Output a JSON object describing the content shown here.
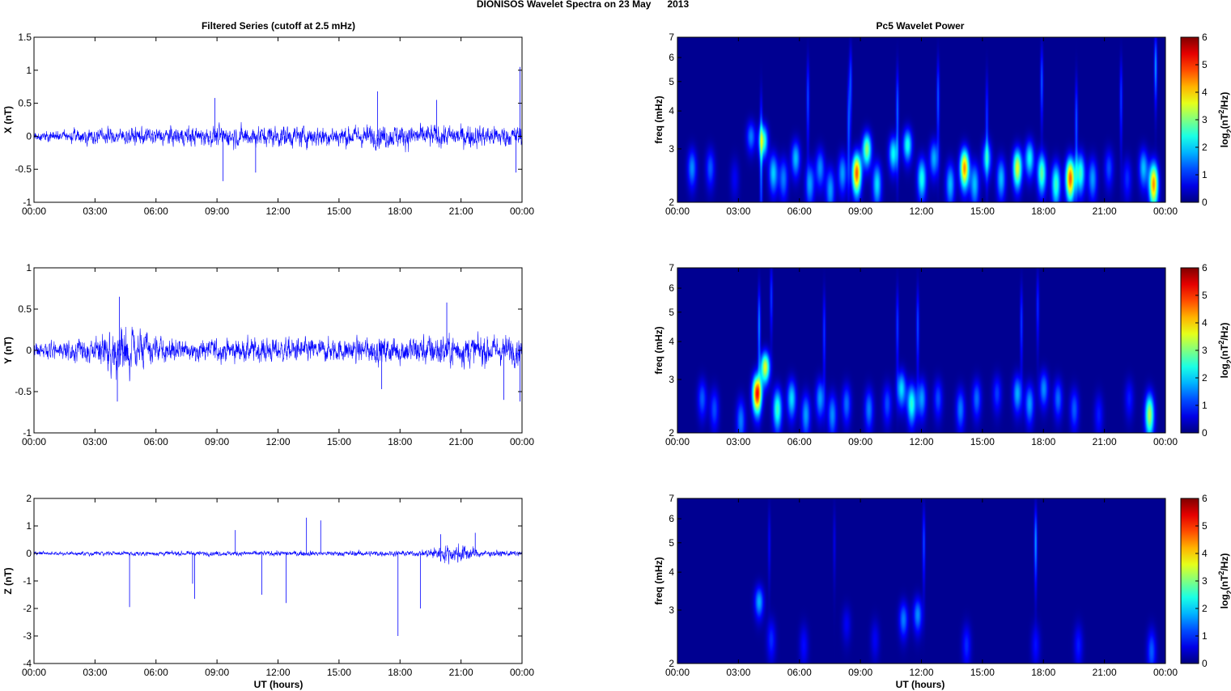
{
  "figure": {
    "title": "DIONISOS Wavelet Spectra on 23 May      2013",
    "left_column_title": "Filtered Series (cutoff at 2.5 mHz)",
    "right_column_title": "Pc5 Wavelet Power",
    "xlabel": "UT (hours)",
    "freq_label": "freq (mHz)",
    "colorbar_label": "log2(nT2/Hz)",
    "colormap": "jet",
    "time_ticks": [
      "00:00",
      "03:00",
      "06:00",
      "09:00",
      "12:00",
      "15:00",
      "18:00",
      "21:00",
      "00:00"
    ],
    "series_color": "#0000ff",
    "spectrogram_background": "#00008f"
  },
  "chart_data": [
    {
      "type": "line",
      "panel": "x-series",
      "ylabel": "X (nT)",
      "x_range_hours": [
        0,
        24
      ],
      "ylim": [
        -1,
        1.5
      ],
      "yticks": [
        "1.5",
        "1",
        "0.5",
        "0",
        "-0.5",
        "-1"
      ],
      "noise_envelope": [
        [
          0,
          0.07
        ],
        [
          3,
          0.12
        ],
        [
          6,
          0.14
        ],
        [
          9,
          0.15
        ],
        [
          12,
          0.17
        ],
        [
          15,
          0.16
        ],
        [
          18,
          0.18
        ],
        [
          21,
          0.17
        ],
        [
          24,
          0.16
        ]
      ],
      "peaks": [
        [
          8.9,
          0.58
        ],
        [
          9.3,
          -0.68
        ],
        [
          16.9,
          0.68
        ],
        [
          19.8,
          0.55
        ],
        [
          23.9,
          1.05
        ],
        [
          23.7,
          -0.55
        ],
        [
          10.9,
          -0.55
        ]
      ]
    },
    {
      "type": "line",
      "panel": "y-series",
      "ylabel": "Y (nT)",
      "x_range_hours": [
        0,
        24
      ],
      "ylim": [
        -1,
        1
      ],
      "yticks": [
        "1",
        "0.5",
        "0",
        "-0.5",
        "-1"
      ],
      "noise_envelope": [
        [
          0,
          0.1
        ],
        [
          3,
          0.15
        ],
        [
          4.2,
          0.32
        ],
        [
          6,
          0.15
        ],
        [
          9,
          0.14
        ],
        [
          12,
          0.15
        ],
        [
          15,
          0.14
        ],
        [
          18,
          0.17
        ],
        [
          20,
          0.2
        ],
        [
          24,
          0.17
        ]
      ],
      "peaks": [
        [
          4.2,
          0.65
        ],
        [
          4.1,
          -0.62
        ],
        [
          17.1,
          -0.47
        ],
        [
          23.1,
          -0.6
        ],
        [
          23.9,
          -0.62
        ],
        [
          20.3,
          0.58
        ]
      ]
    },
    {
      "type": "line",
      "panel": "z-series",
      "ylabel": "Z (nT)",
      "xlabel": "UT (hours)",
      "x_range_hours": [
        0,
        24
      ],
      "ylim": [
        -4,
        2
      ],
      "yticks": [
        "2",
        "1",
        "0",
        "-1",
        "-2",
        "-3",
        "-4"
      ],
      "noise_envelope": [
        [
          0,
          0.07
        ],
        [
          6,
          0.08
        ],
        [
          12,
          0.09
        ],
        [
          19,
          0.1
        ],
        [
          20,
          0.3
        ],
        [
          21,
          0.35
        ],
        [
          22,
          0.12
        ],
        [
          24,
          0.09
        ]
      ],
      "peaks": [
        [
          4.7,
          -1.95
        ],
        [
          7.8,
          -1.1
        ],
        [
          7.9,
          -1.65
        ],
        [
          9.9,
          0.85
        ],
        [
          11.2,
          -1.5
        ],
        [
          12.4,
          -1.8
        ],
        [
          13.4,
          1.3
        ],
        [
          14.1,
          1.2
        ],
        [
          17.9,
          -3.0
        ],
        [
          19.0,
          -2.0
        ],
        [
          20.0,
          0.7
        ],
        [
          21.7,
          0.75
        ]
      ]
    },
    {
      "type": "heatmap",
      "panel": "x-wavelet",
      "ylabel": "freq (mHz)",
      "y_scale": "log",
      "ylim": [
        2,
        7
      ],
      "yticks": [
        "7",
        "6",
        "5",
        "4",
        "3",
        "2"
      ],
      "x_range_hours": [
        0,
        24
      ],
      "clim": [
        0,
        6
      ],
      "blobs": [
        [
          0.7,
          2.6,
          1.5
        ],
        [
          1.6,
          2.6,
          1.2
        ],
        [
          2.8,
          2.4,
          0.6
        ],
        [
          3.6,
          3.3,
          1.4
        ],
        [
          4.2,
          3.2,
          2.7
        ],
        [
          4.7,
          2.5,
          1.9
        ],
        [
          5.2,
          2.4,
          1.4
        ],
        [
          5.8,
          2.8,
          1.8
        ],
        [
          6.5,
          2.3,
          1.6
        ],
        [
          7.0,
          2.6,
          1.5
        ],
        [
          7.5,
          2.2,
          1.6
        ],
        [
          8.1,
          2.5,
          1.6
        ],
        [
          8.8,
          2.5,
          4.6
        ],
        [
          9.3,
          3.0,
          3.0
        ],
        [
          9.8,
          2.3,
          2.0
        ],
        [
          10.6,
          2.9,
          2.2
        ],
        [
          11.3,
          3.1,
          2.3
        ],
        [
          12.0,
          2.4,
          2.3
        ],
        [
          12.6,
          2.8,
          1.7
        ],
        [
          13.4,
          2.3,
          1.8
        ],
        [
          14.1,
          2.6,
          4.3
        ],
        [
          14.6,
          2.3,
          1.8
        ],
        [
          15.2,
          2.8,
          1.9
        ],
        [
          15.9,
          2.4,
          1.8
        ],
        [
          16.7,
          2.6,
          3.5
        ],
        [
          17.3,
          2.8,
          2.2
        ],
        [
          17.9,
          2.5,
          2.7
        ],
        [
          18.6,
          2.3,
          2.5
        ],
        [
          19.3,
          2.4,
          4.6
        ],
        [
          19.8,
          2.5,
          2.5
        ],
        [
          20.4,
          2.4,
          1.6
        ],
        [
          21.2,
          2.6,
          1.1
        ],
        [
          22.1,
          2.4,
          0.9
        ],
        [
          22.9,
          2.6,
          1.8
        ],
        [
          23.4,
          2.3,
          4.3
        ]
      ],
      "streaks": [
        [
          4.1,
          2.9,
          1.5
        ],
        [
          6.4,
          4.4,
          1.1
        ],
        [
          8.4,
          3.6,
          1.2
        ],
        [
          8.5,
          5.0,
          1.1
        ],
        [
          10.8,
          4.0,
          1.3
        ],
        [
          12.8,
          4.4,
          1.2
        ],
        [
          15.2,
          3.7,
          1.0
        ],
        [
          17.9,
          5.0,
          1.2
        ],
        [
          19.6,
          3.6,
          1.2
        ],
        [
          21.8,
          4.4,
          1.0
        ],
        [
          23.5,
          5.6,
          1.6
        ]
      ]
    },
    {
      "type": "heatmap",
      "panel": "y-wavelet",
      "ylabel": "freq (mHz)",
      "y_scale": "log",
      "ylim": [
        2,
        7
      ],
      "yticks": [
        "7",
        "6",
        "5",
        "4",
        "3",
        "2"
      ],
      "x_range_hours": [
        0,
        24
      ],
      "clim": [
        0,
        6
      ],
      "blobs": [
        [
          1.2,
          2.6,
          1.2
        ],
        [
          1.8,
          2.4,
          1.1
        ],
        [
          3.1,
          2.2,
          1.4
        ],
        [
          3.9,
          2.7,
          5.1
        ],
        [
          4.3,
          3.3,
          3.5
        ],
        [
          4.9,
          2.4,
          2.5
        ],
        [
          5.6,
          2.6,
          2.0
        ],
        [
          6.3,
          2.3,
          1.6
        ],
        [
          7.0,
          2.6,
          1.6
        ],
        [
          7.6,
          2.3,
          1.5
        ],
        [
          8.3,
          2.5,
          1.3
        ],
        [
          9.4,
          2.4,
          1.4
        ],
        [
          10.3,
          2.5,
          1.1
        ],
        [
          11.0,
          2.8,
          2.0
        ],
        [
          11.5,
          2.5,
          2.4
        ],
        [
          12.0,
          2.6,
          1.6
        ],
        [
          12.8,
          2.6,
          1.1
        ],
        [
          13.9,
          2.4,
          1.4
        ],
        [
          14.7,
          2.6,
          1.3
        ],
        [
          15.7,
          2.7,
          1.0
        ],
        [
          16.7,
          2.7,
          1.7
        ],
        [
          17.3,
          2.5,
          1.6
        ],
        [
          18.0,
          2.8,
          1.5
        ],
        [
          18.7,
          2.6,
          1.3
        ],
        [
          19.5,
          2.4,
          1.2
        ],
        [
          20.7,
          2.3,
          0.8
        ],
        [
          22.2,
          2.6,
          0.8
        ],
        [
          23.2,
          2.3,
          3.2
        ]
      ],
      "streaks": [
        [
          4.0,
          4.5,
          1.5
        ],
        [
          4.6,
          5.6,
          1.0
        ],
        [
          7.2,
          4.3,
          1.0
        ],
        [
          10.8,
          4.5,
          1.0
        ],
        [
          11.8,
          4.5,
          1.1
        ],
        [
          16.9,
          4.6,
          1.0
        ],
        [
          17.7,
          5.2,
          0.9
        ]
      ]
    },
    {
      "type": "heatmap",
      "panel": "z-wavelet",
      "ylabel": "freq (mHz)",
      "y_scale": "log",
      "ylim": [
        2,
        7
      ],
      "yticks": [
        "7",
        "6",
        "5",
        "4",
        "3",
        "2"
      ],
      "x_range_hours": [
        0,
        24
      ],
      "clim": [
        0,
        6
      ],
      "blobs": [
        [
          4.0,
          3.2,
          1.7
        ],
        [
          4.6,
          2.4,
          0.9
        ],
        [
          6.2,
          2.3,
          0.7
        ],
        [
          8.3,
          2.7,
          0.6
        ],
        [
          9.7,
          2.4,
          0.6
        ],
        [
          11.1,
          2.8,
          1.4
        ],
        [
          11.8,
          2.9,
          1.5
        ],
        [
          14.2,
          2.3,
          0.9
        ],
        [
          17.6,
          2.3,
          0.7
        ],
        [
          19.7,
          2.3,
          0.8
        ],
        [
          23.3,
          2.2,
          1.2
        ]
      ],
      "streaks": [
        [
          4.5,
          5.0,
          0.6
        ],
        [
          7.7,
          5.0,
          0.5
        ],
        [
          12.1,
          5.0,
          1.1
        ],
        [
          17.6,
          5.0,
          1.6
        ]
      ]
    }
  ]
}
